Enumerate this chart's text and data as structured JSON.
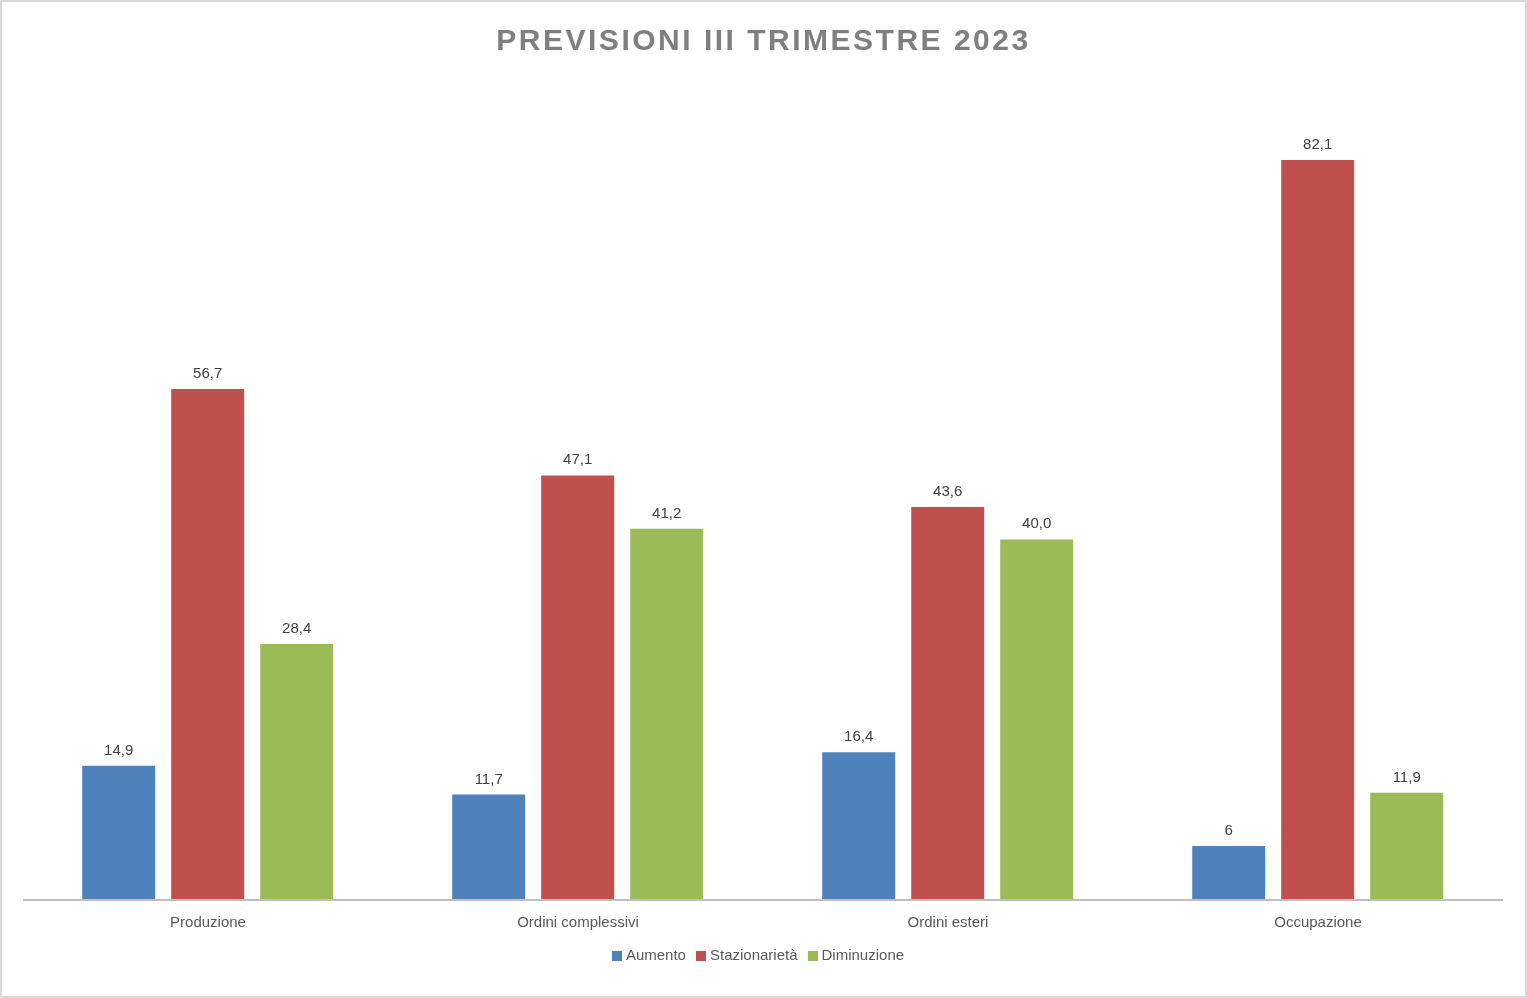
{
  "chart_data": {
    "type": "bar",
    "title": "PREVISIONI III TRIMESTRE 2023",
    "categories": [
      "Produzione",
      "Ordini complessivi",
      "Ordini esteri",
      "Occupazione"
    ],
    "series": [
      {
        "name": "Aumento",
        "color": "#4f81bd",
        "values": [
          14.9,
          11.7,
          16.4,
          6
        ],
        "value_labels": [
          "14,9",
          "11,7",
          "16,4",
          "6"
        ]
      },
      {
        "name": "Stazionarietà",
        "color": "#c0504d",
        "values": [
          56.7,
          47.1,
          43.6,
          82.1
        ],
        "value_labels": [
          "56,7",
          "47,1",
          "43,6",
          "82,1"
        ]
      },
      {
        "name": "Diminuzione",
        "color": "#9bbb59",
        "values": [
          28.4,
          41.2,
          40.0,
          11.9
        ],
        "value_labels": [
          "28,4",
          "41,2",
          "40,0",
          "11,9"
        ]
      }
    ],
    "legend": "bottom",
    "tick_labels": "x"
  }
}
